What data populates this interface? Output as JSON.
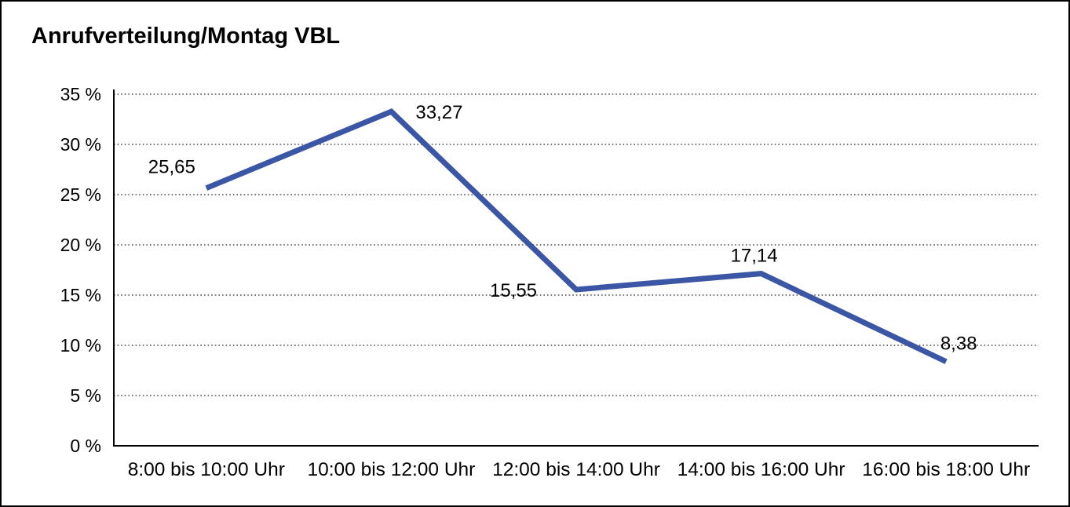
{
  "window": {
    "background_color": "#ffffff",
    "border_color": "#000000"
  },
  "chart_data": {
    "type": "line",
    "title": "Anrufverteilung/Montag VBL",
    "categories": [
      "8:00 bis 10:00 Uhr",
      "10:00 bis 12:00 Uhr",
      "12:00 bis 14:00 Uhr",
      "14:00 bis 16:00 Uhr",
      "16:00 bis 18:00 Uhr"
    ],
    "values": [
      25.65,
      33.27,
      15.55,
      17.14,
      8.38
    ],
    "value_labels": [
      "25,65",
      "33,27",
      "15,55",
      "17,14",
      "8,38"
    ],
    "xlabel": "",
    "ylabel": "",
    "ylim": [
      0,
      35
    ],
    "ytick_values": [
      35,
      30,
      25,
      20,
      15,
      10,
      5,
      0
    ],
    "ytick_labels": [
      "35 %",
      "30 %",
      "25 %",
      "20 %",
      "15 %",
      "10 %",
      "5 %",
      "0 %"
    ],
    "grid": "horizontal-dotted",
    "legend": "none",
    "line_color": "#3b56a5",
    "grid_color": "#4a4a4a",
    "axis_color": "#000000",
    "label_color": "#000000"
  }
}
